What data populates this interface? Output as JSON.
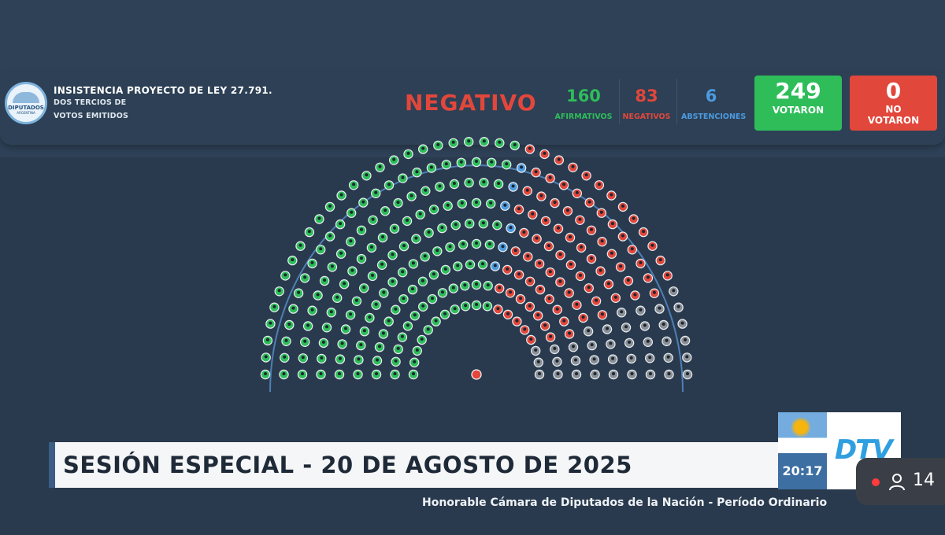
{
  "header": {
    "title": "INSISTENCIA PROYECTO DE LEY 27.791.",
    "subtitle_line1": "DOS TERCIOS DE",
    "subtitle_line2": "VOTOS EMITIDOS",
    "result": "NEGATIVO",
    "logo_text": "DIPUTADOS",
    "logo_subtext": "ARGENTINA"
  },
  "stats": {
    "afirmativos": {
      "value": "160",
      "label": "AFIRMATIVOS",
      "color": "#2ebd59"
    },
    "negativos": {
      "value": "83",
      "label": "NEGATIVOS",
      "color": "#e2473b"
    },
    "abstenciones": {
      "value": "6",
      "label": "ABSTENCIONES",
      "color": "#4d9be0"
    },
    "votaron": {
      "value": "249",
      "label": "VOTARON",
      "color": "#2ebd59"
    },
    "no_votaron": {
      "value": "0",
      "label_line1": "NO",
      "label_line2": "VOTARON",
      "color": "#e2473b"
    }
  },
  "hemicycle": {
    "seats_per_row": [
      19,
      23,
      26,
      29,
      32,
      35,
      38,
      41,
      44
    ],
    "colors": {
      "afirmativo": "#2ebd59",
      "negativo": "#e2473b",
      "abstencion": "#4d9be0",
      "ausente": "#8a8f96"
    }
  },
  "banner": {
    "text": "SESIÓN ESPECIAL - 20 DE AGOSTO DE 2025"
  },
  "ticker": {
    "text": "Honorable Cámara de Diputados de la Nación - Período Ordinario"
  },
  "broadcast": {
    "time": "20:17",
    "channel": "DTV"
  },
  "viewers": {
    "count": "14"
  }
}
